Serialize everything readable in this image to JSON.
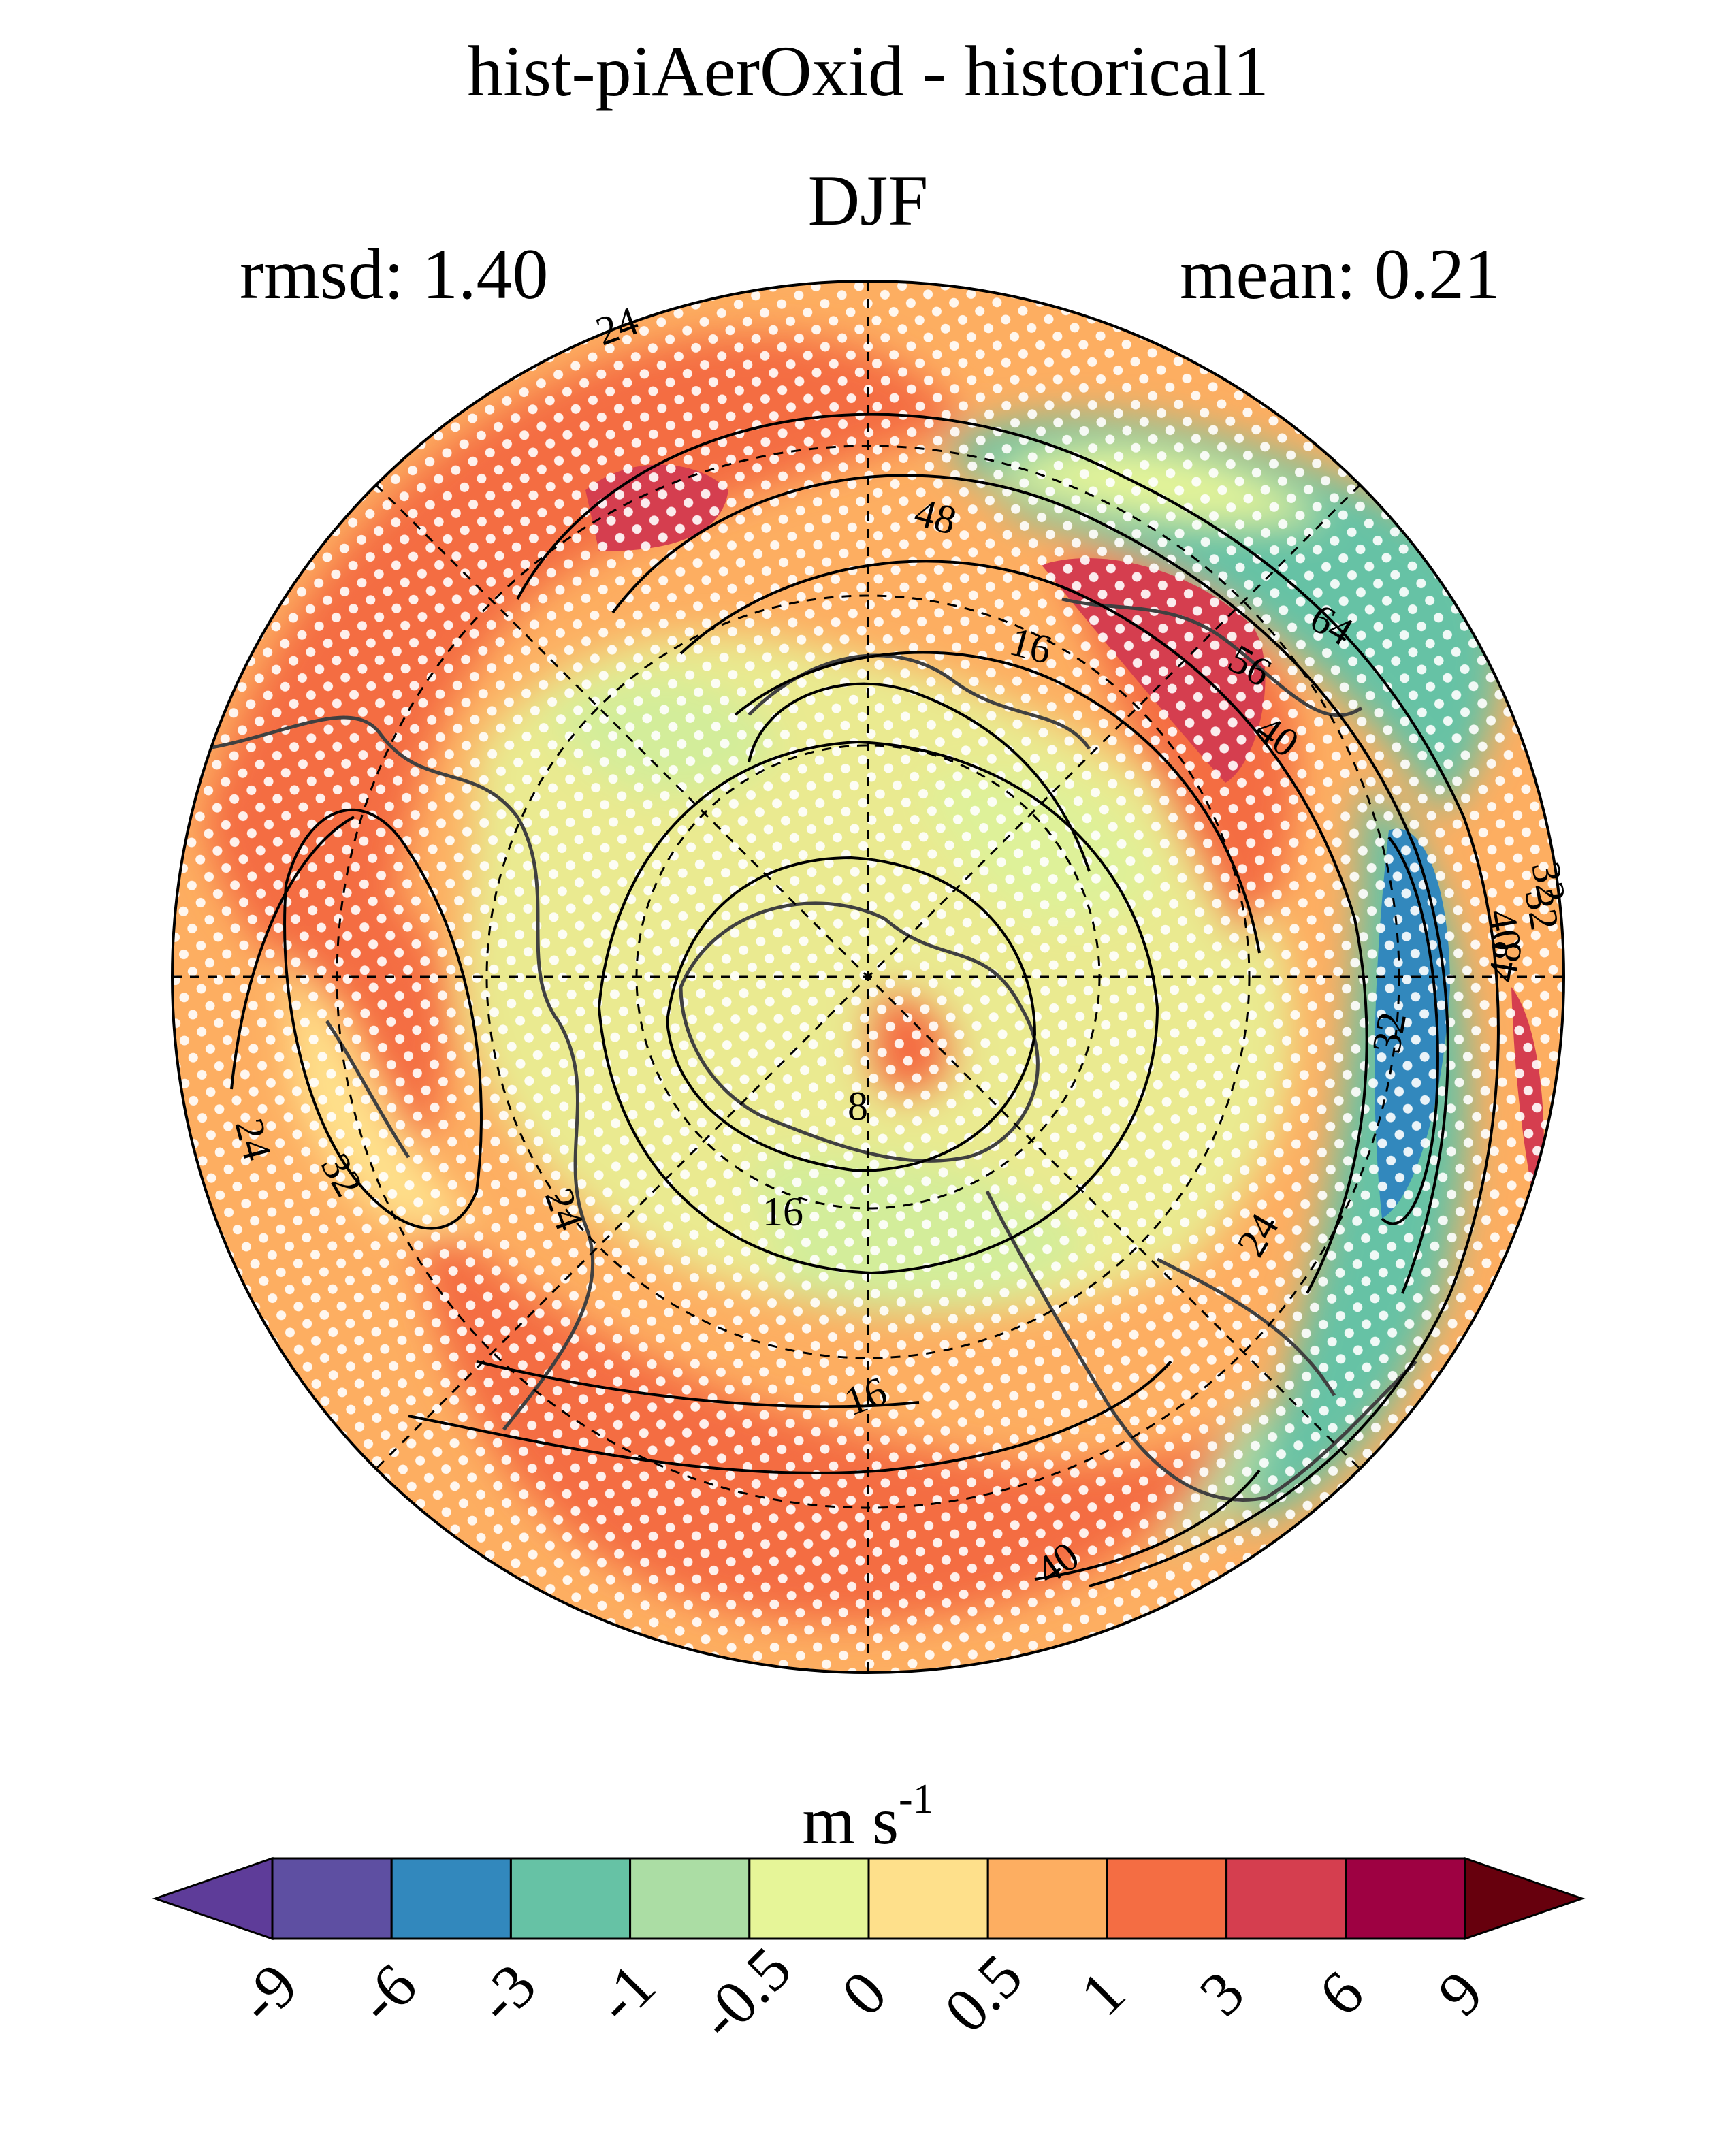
{
  "title": "hist-piAerOxid - historical1",
  "season": "DJF",
  "stats": {
    "rmsd": "rmsd: 1.40",
    "mean": "mean: 0.21"
  },
  "colorbar": {
    "unit_base": "m s",
    "unit_exp": "-1",
    "levels": [
      "-9",
      "-6",
      "-3",
      "-1",
      "-0.5",
      "0",
      "0.5",
      "1",
      "3",
      "6",
      "9"
    ],
    "colors": [
      "#5e4fa2",
      "#3288bd",
      "#66c2a5",
      "#abdda4",
      "#e6f598",
      "#fee08b",
      "#fdae61",
      "#f46d43",
      "#d53e4f",
      "#9e0142"
    ],
    "under_color": "#5e3c99",
    "over_color": "#67000d"
  },
  "contour_labels": [
    "24",
    "48",
    "16",
    "56",
    "64",
    "40",
    "8",
    "32",
    "24",
    "24",
    "32",
    "16",
    "16",
    "24",
    "32",
    "48",
    "40",
    "40",
    "32"
  ]
}
